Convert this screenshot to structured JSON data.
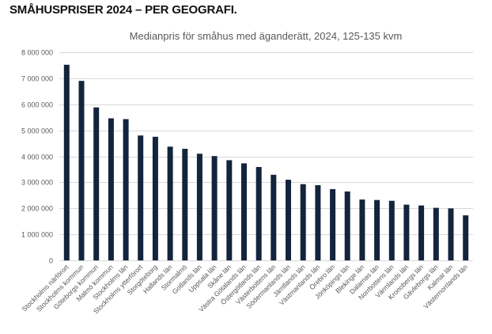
{
  "page": {
    "heading": "SMÅHUSPRISER 2024 – PER GEOGRAFI."
  },
  "colors": {
    "bar": "#13243d",
    "grid": "#d9d9d9",
    "text": "#595959"
  },
  "chart_data": {
    "type": "bar",
    "title": "Medianpris för småhus med äganderätt, 2024, 125-135 kvm",
    "xlabel": "",
    "ylabel": "",
    "ylim": [
      0,
      8000000
    ],
    "yticks": [
      0,
      1000000,
      2000000,
      3000000,
      4000000,
      5000000,
      6000000,
      7000000,
      8000000
    ],
    "ytick_labels": [
      "0",
      "1 000 000",
      "2 000 000",
      "3 000 000",
      "4 000 000",
      "5 000 000",
      "6 000 000",
      "7 000 000",
      "8 000 000"
    ],
    "grid": true,
    "legend": "none",
    "categories": [
      "Stockholms närförort",
      "Stockholms kommun",
      "Göteborgs kommun",
      "Malmö kommun",
      "Stockholms län",
      "Stockholms ytterförort",
      "Storgöteborg",
      "Hallands län",
      "Stormalmö",
      "Gotlands län",
      "Uppsala län",
      "Skåne län",
      "Västra Götalands län",
      "Östergötlands län",
      "Västerbottens län",
      "Södermanlands län",
      "Jämtlands län",
      "Västmanlands län",
      "Örebro län",
      "Jönköpings län",
      "Blekinge län",
      "Dalarnas län",
      "Norrbottens län",
      "Värmlands län",
      "Kronobergs län",
      "Gävleborgs län",
      "Kalmar län",
      "Västernorrlands län"
    ],
    "values": [
      7520000,
      6900000,
      5880000,
      5460000,
      5430000,
      4800000,
      4750000,
      4370000,
      4290000,
      4100000,
      4010000,
      3850000,
      3730000,
      3590000,
      3290000,
      3100000,
      2930000,
      2890000,
      2740000,
      2650000,
      2340000,
      2320000,
      2290000,
      2140000,
      2110000,
      2020000,
      2000000,
      1730000
    ]
  }
}
